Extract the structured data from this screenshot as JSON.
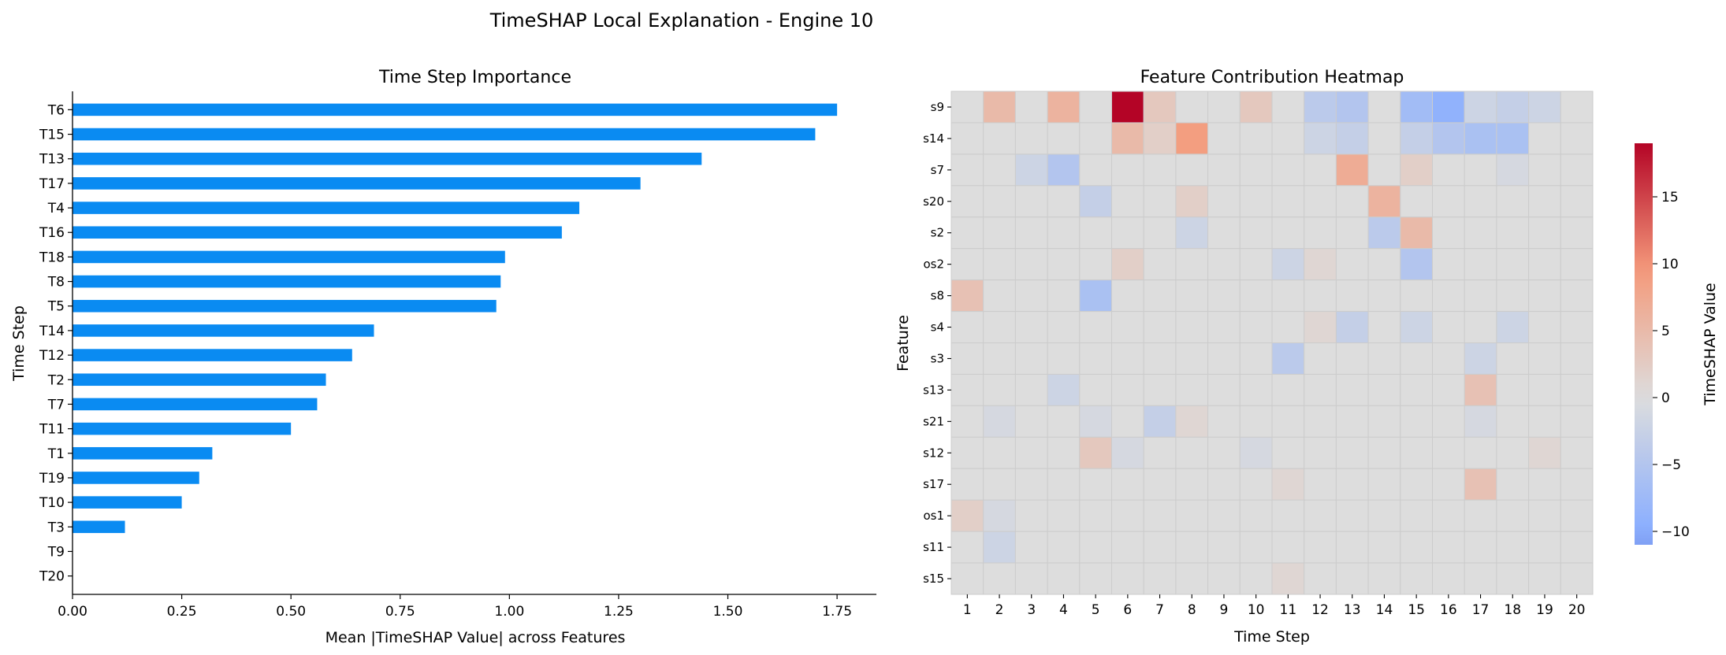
{
  "figure_title": "TimeSHAP Local Explanation - Engine 10",
  "colors": {
    "bar": "#0a8bf2",
    "axis": "#000000",
    "cell_border": "#cccccc"
  },
  "chart_data": [
    {
      "type": "bar",
      "orientation": "horizontal",
      "title": "Time Step Importance",
      "xlabel": "Mean |TimeSHAP Value| across Features",
      "ylabel": "Time Step",
      "xlim": [
        0,
        1.84
      ],
      "xticks": [
        "0.00",
        "0.25",
        "0.50",
        "0.75",
        "1.00",
        "1.25",
        "1.50",
        "1.75"
      ],
      "categories": [
        "T6",
        "T15",
        "T13",
        "T17",
        "T4",
        "T16",
        "T18",
        "T8",
        "T5",
        "T14",
        "T12",
        "T2",
        "T7",
        "T11",
        "T1",
        "T19",
        "T10",
        "T3",
        "T9",
        "T20"
      ],
      "values": [
        1.75,
        1.7,
        1.44,
        1.3,
        1.16,
        1.12,
        0.99,
        0.98,
        0.97,
        0.69,
        0.64,
        0.58,
        0.56,
        0.5,
        0.32,
        0.29,
        0.25,
        0.12,
        0.0,
        0.0
      ],
      "grid": false
    },
    {
      "type": "heatmap",
      "title": "Feature Contribution Heatmap",
      "xlabel": "Time Step",
      "ylabel": "Feature",
      "x": [
        "1",
        "2",
        "3",
        "4",
        "5",
        "6",
        "7",
        "8",
        "9",
        "10",
        "11",
        "12",
        "13",
        "14",
        "15",
        "16",
        "17",
        "18",
        "19",
        "20"
      ],
      "y": [
        "s9",
        "s14",
        "s7",
        "s20",
        "s2",
        "os2",
        "s8",
        "s4",
        "s3",
        "s13",
        "s21",
        "s12",
        "s17",
        "os1",
        "s11",
        "s15"
      ],
      "values": [
        [
          0,
          5,
          0,
          6,
          0,
          19,
          3,
          0,
          0,
          3,
          0,
          -4,
          -5,
          0,
          -7,
          -9,
          -2,
          -3,
          -2,
          0
        ],
        [
          0,
          0,
          0,
          0,
          0,
          5,
          2,
          9,
          0,
          0,
          0,
          -2,
          -3,
          0,
          -3,
          -5,
          -6,
          -6,
          0,
          0
        ],
        [
          0,
          0,
          -2,
          -5,
          0,
          0,
          0,
          0,
          0,
          0,
          0,
          0,
          7,
          0,
          2,
          0,
          0,
          -1,
          0,
          0
        ],
        [
          0,
          0,
          0,
          0,
          -3,
          0,
          0,
          2,
          0,
          0,
          0,
          0,
          0,
          6,
          0,
          0,
          0,
          0,
          0,
          0
        ],
        [
          0,
          0,
          0,
          0,
          0,
          0,
          0,
          -2,
          0,
          0,
          0,
          0,
          0,
          -4,
          5,
          0,
          0,
          0,
          0,
          0
        ],
        [
          0,
          0,
          0,
          0,
          0,
          2,
          0,
          0,
          0,
          0,
          -2,
          1,
          0,
          0,
          -5,
          0,
          0,
          0,
          0,
          0
        ],
        [
          4,
          0,
          0,
          0,
          -6,
          0,
          0,
          0,
          0,
          0,
          0,
          0,
          0,
          0,
          0,
          0,
          0,
          0,
          0,
          0
        ],
        [
          0,
          0,
          0,
          0,
          0,
          0,
          0,
          0,
          0,
          0,
          0,
          1,
          -3,
          0,
          -2,
          0,
          0,
          -2,
          0,
          0
        ],
        [
          0,
          0,
          0,
          0,
          0,
          0,
          0,
          0,
          0,
          0,
          -4,
          0,
          0,
          0,
          0,
          0,
          -2,
          0,
          0,
          0
        ],
        [
          0,
          0,
          0,
          -2,
          0,
          0,
          0,
          0,
          0,
          0,
          0,
          0,
          0,
          0,
          0,
          0,
          4,
          0,
          0,
          0
        ],
        [
          0,
          -1,
          0,
          0,
          -1,
          0,
          -3,
          1,
          0,
          0,
          0,
          0,
          0,
          0,
          0,
          0,
          -1,
          0,
          0,
          0
        ],
        [
          0,
          0,
          0,
          0,
          3,
          -1,
          0,
          0,
          0,
          -1,
          0,
          0,
          0,
          0,
          0,
          0,
          0,
          0,
          1,
          0
        ],
        [
          0,
          0,
          0,
          0,
          0,
          0,
          0,
          0,
          0,
          0,
          1,
          0,
          0,
          0,
          0,
          0,
          4,
          0,
          0,
          0
        ],
        [
          2,
          -1,
          0,
          0,
          0,
          0,
          0,
          0,
          0,
          0,
          0,
          0,
          0,
          0,
          0,
          0,
          0,
          0,
          0,
          0
        ],
        [
          0,
          -2,
          0,
          0,
          0,
          0,
          0,
          0,
          0,
          0,
          0,
          0,
          0,
          0,
          0,
          0,
          0,
          0,
          0,
          0
        ],
        [
          0,
          0,
          0,
          0,
          0,
          0,
          0,
          0,
          0,
          0,
          1,
          0,
          0,
          0,
          0,
          0,
          0,
          0,
          0,
          0
        ]
      ],
      "colorbar": {
        "label": "TimeSHAP Value",
        "min": -11,
        "max": 19,
        "ticks": [
          -10,
          -5,
          0,
          5,
          10,
          15
        ],
        "tick_labels": [
          "−10",
          "−5",
          "0",
          "5",
          "10",
          "15"
        ],
        "colormap": "coolwarm"
      }
    }
  ]
}
